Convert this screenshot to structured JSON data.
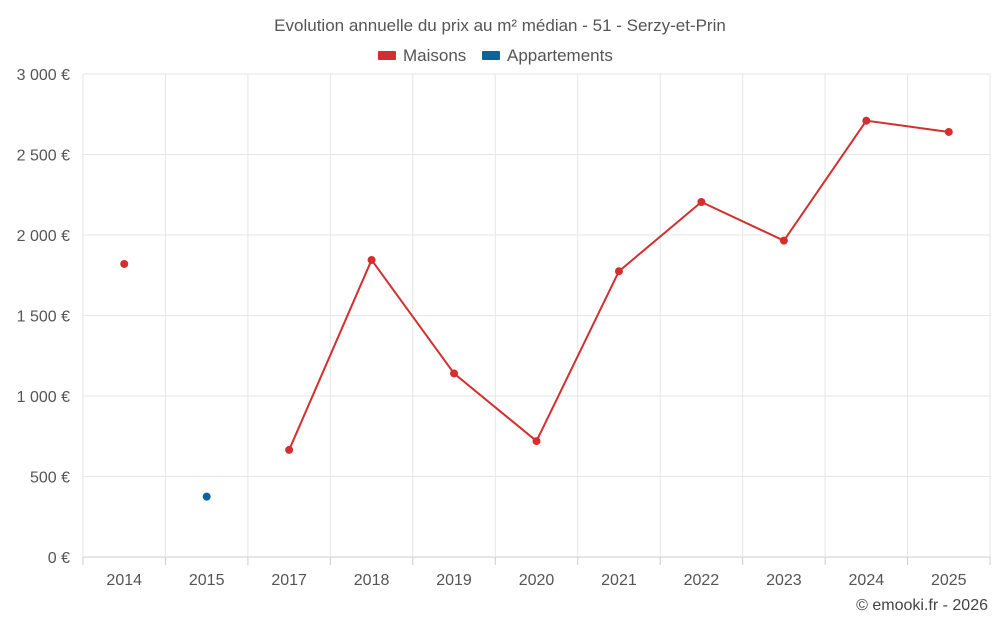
{
  "chart_data": {
    "type": "line",
    "title": "Evolution annuelle du prix au m² médian - 51 - Serzy-et-Prin",
    "categories": [
      "2014",
      "2015",
      "2017",
      "2018",
      "2019",
      "2020",
      "2021",
      "2022",
      "2023",
      "2024",
      "2025"
    ],
    "series": [
      {
        "name": "Maisons",
        "color": "#d32f2f",
        "values": [
          1820,
          null,
          665,
          1845,
          1140,
          720,
          1775,
          2205,
          1965,
          2710,
          2640
        ]
      },
      {
        "name": "Appartements",
        "color": "#0d63a0",
        "values": [
          null,
          375,
          null,
          null,
          null,
          null,
          null,
          null,
          null,
          null,
          null
        ]
      }
    ],
    "ylim": [
      0,
      3000
    ],
    "yticks": [
      0,
      500,
      1000,
      1500,
      2000,
      2500,
      3000
    ],
    "ytick_labels": [
      "0 €",
      "500 €",
      "1 000 €",
      "1 500 €",
      "2 000 €",
      "2 500 €",
      "3 000 €"
    ],
    "xlabel": "",
    "ylabel": "",
    "grid": true,
    "legend": "top-center"
  },
  "credit": "© emooki.fr - 2026"
}
